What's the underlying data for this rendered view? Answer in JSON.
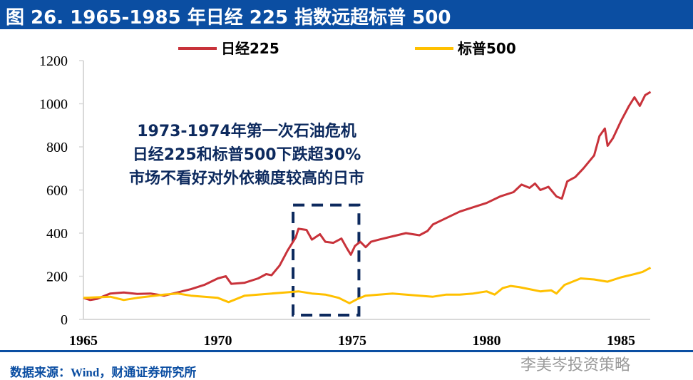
{
  "title": "图 26. 1965-1985 年日经 225 指数远超标普 500",
  "source": "数据来源：Wind，财通证券研究所",
  "watermark": "李美岑投资策略",
  "annotation": [
    "1973-1974年第一次石油危机",
    "日经225和标普500下跌超30%",
    "市场不看好对外依赖度较高的日市"
  ],
  "chart_data": {
    "type": "line",
    "title": "",
    "xlabel": "",
    "ylabel": "",
    "xlim": [
      1965,
      1986.1
    ],
    "ylim": [
      0,
      1200
    ],
    "xticks": [
      1965,
      1970,
      1975,
      1980,
      1985
    ],
    "yticks": [
      0,
      200,
      400,
      600,
      800,
      1000,
      1200
    ],
    "grid": false,
    "legend": "top",
    "highlight_box": {
      "x": [
        1972.8,
        1975.25
      ],
      "y": [
        20,
        530
      ],
      "color": "#0D2A5E"
    },
    "series": [
      {
        "name": "日经225",
        "color": "#C8323A",
        "x": [
          1965,
          1965.25,
          1965.5,
          1966,
          1966.5,
          1967,
          1967.5,
          1968,
          1968.5,
          1969,
          1969.5,
          1970,
          1970.3,
          1970.5,
          1971,
          1971.5,
          1971.8,
          1972,
          1972.3,
          1972.6,
          1972.9,
          1973,
          1973.3,
          1973.5,
          1973.8,
          1974,
          1974.3,
          1974.6,
          1974.8,
          1974.95,
          1975.1,
          1975.3,
          1975.5,
          1975.7,
          1976,
          1976.5,
          1977,
          1977.5,
          1977.8,
          1978,
          1978.5,
          1979,
          1979.5,
          1980,
          1980.5,
          1981,
          1981.3,
          1981.6,
          1981.8,
          1982,
          1982.3,
          1982.6,
          1982.8,
          1983,
          1983.3,
          1983.6,
          1984,
          1984.2,
          1984.4,
          1984.5,
          1984.7,
          1985,
          1985.3,
          1985.5,
          1985.7,
          1985.9,
          1986.1
        ],
        "values": [
          100,
          90,
          95,
          120,
          125,
          118,
          120,
          110,
          125,
          140,
          160,
          190,
          200,
          165,
          170,
          190,
          210,
          205,
          250,
          320,
          380,
          420,
          415,
          370,
          395,
          360,
          355,
          375,
          330,
          300,
          340,
          360,
          335,
          360,
          370,
          385,
          400,
          390,
          410,
          440,
          470,
          500,
          520,
          540,
          570,
          590,
          625,
          610,
          630,
          600,
          615,
          570,
          560,
          640,
          660,
          700,
          760,
          850,
          885,
          805,
          840,
          920,
          990,
          1030,
          990,
          1040,
          1055
        ]
      },
      {
        "name": "标普500",
        "color": "#FFC000",
        "x": [
          1965,
          1966,
          1966.5,
          1967,
          1968,
          1968.5,
          1969,
          1970,
          1970.4,
          1971,
          1971.5,
          1972,
          1972.5,
          1973,
          1973.5,
          1974,
          1974.5,
          1974.9,
          1975.2,
          1975.5,
          1976,
          1976.5,
          1977,
          1977.5,
          1978,
          1978.5,
          1979,
          1979.5,
          1980,
          1980.3,
          1980.6,
          1980.9,
          1981.2,
          1981.6,
          1982,
          1982.4,
          1982.6,
          1982.9,
          1983.5,
          1984,
          1984.5,
          1985,
          1985.5,
          1985.8,
          1986.1
        ],
        "values": [
          100,
          105,
          90,
          100,
          115,
          120,
          110,
          100,
          80,
          110,
          115,
          120,
          125,
          130,
          120,
          115,
          100,
          75,
          95,
          110,
          115,
          120,
          115,
          110,
          105,
          115,
          115,
          120,
          130,
          115,
          145,
          155,
          150,
          140,
          130,
          135,
          120,
          160,
          190,
          185,
          175,
          195,
          210,
          220,
          240
        ]
      }
    ]
  }
}
